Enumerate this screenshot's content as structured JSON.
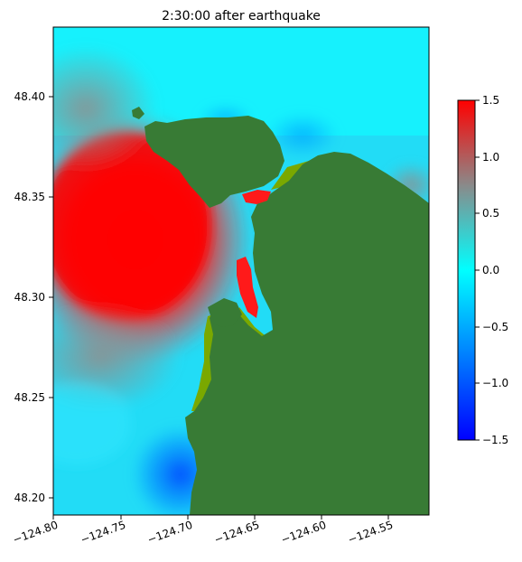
{
  "title": "2:30:00 after earthquake",
  "y_ticks": [
    "48.20",
    "48.25",
    "48.30",
    "48.35",
    "48.40"
  ],
  "x_ticks": [
    "−124.80",
    "−124.75",
    "−124.70",
    "−124.65",
    "−124.60",
    "−124.55"
  ],
  "colorbar_ticks": [
    "1.5",
    "1.0",
    "0.5",
    "0.0",
    "−0.5",
    "−1.0",
    "−1.5"
  ],
  "colors": {
    "land": "#387b35",
    "intertidal": "#7aa800",
    "ocean_base": "#22dcf6",
    "cmap_low": "#0000ff",
    "cmap_mid": "#00ffff",
    "cmap_grey": "#8a8a8a",
    "cmap_high": "#ff0000"
  },
  "chart_data": {
    "type": "heatmap",
    "title": "2:30:00 after earthquake",
    "xlim": [
      -124.8,
      -124.52
    ],
    "ylim": [
      48.192,
      48.435
    ],
    "colorbar": {
      "min": -1.5,
      "max": 1.5,
      "ticks": [
        1.5,
        1.0,
        0.5,
        0.0,
        -0.5,
        -1.0,
        -1.5
      ]
    },
    "x_ticks": [
      -124.8,
      -124.75,
      -124.7,
      -124.65,
      -124.6,
      -124.55
    ],
    "y_ticks": [
      48.2,
      48.25,
      48.3,
      48.35,
      48.4
    ]
  }
}
